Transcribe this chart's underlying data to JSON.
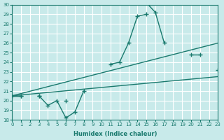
{
  "xlabel": "Humidex (Indice chaleur)",
  "bg_color": "#c8eaea",
  "grid_color": "#ffffff",
  "line_color": "#1a7a6e",
  "xlim": [
    0,
    23
  ],
  "ylim": [
    18,
    30
  ],
  "xticks": [
    0,
    1,
    2,
    3,
    4,
    5,
    6,
    7,
    8,
    9,
    10,
    11,
    12,
    13,
    14,
    15,
    16,
    17,
    18,
    19,
    20,
    21,
    22,
    23
  ],
  "yticks": [
    18,
    19,
    20,
    21,
    22,
    23,
    24,
    25,
    26,
    27,
    28,
    29,
    30
  ],
  "series": [
    {
      "x": [
        0,
        1,
        2,
        3,
        4,
        5,
        6,
        7,
        8,
        9,
        10,
        11,
        12,
        13,
        14,
        15,
        16,
        17,
        18,
        19,
        20,
        21,
        22,
        23
      ],
      "y": [
        20.5,
        20.5,
        null,
        20.5,
        null,
        null,
        20.0,
        null,
        null,
        null,
        null,
        null,
        null,
        null,
        30.2,
        30.2,
        29.2,
        26.0,
        null,
        null,
        null,
        null,
        null,
        null
      ],
      "with_markers": true
    },
    {
      "x": [
        0,
        1,
        2,
        3,
        4,
        5,
        6,
        7,
        8,
        9,
        10,
        11,
        12,
        13,
        14,
        15,
        16,
        17,
        18,
        19,
        20,
        21,
        22,
        23
      ],
      "y": [
        20.5,
        20.5,
        null,
        20.5,
        19.5,
        20.0,
        18.2,
        18.8,
        21.0,
        null,
        null,
        23.8,
        24.0,
        26.0,
        28.8,
        29.0,
        null,
        null,
        null,
        null,
        null,
        null,
        null,
        null
      ],
      "with_markers": true
    },
    {
      "x": [
        0,
        23
      ],
      "y": [
        20.5,
        22.5
      ],
      "with_markers": false
    },
    {
      "x": [
        0,
        23
      ],
      "y": [
        20.5,
        26.0
      ],
      "with_markers": false
    },
    {
      "x": [
        0,
        1,
        2,
        3,
        4,
        5,
        6,
        7,
        8,
        9,
        10,
        11,
        12,
        13,
        14,
        15,
        16,
        17,
        18,
        19,
        20,
        21,
        22,
        23
      ],
      "y": [
        null,
        null,
        null,
        null,
        null,
        null,
        null,
        null,
        null,
        null,
        null,
        null,
        null,
        null,
        null,
        null,
        null,
        null,
        null,
        null,
        24.8,
        24.8,
        null,
        23.2
      ],
      "with_markers": true
    }
  ]
}
